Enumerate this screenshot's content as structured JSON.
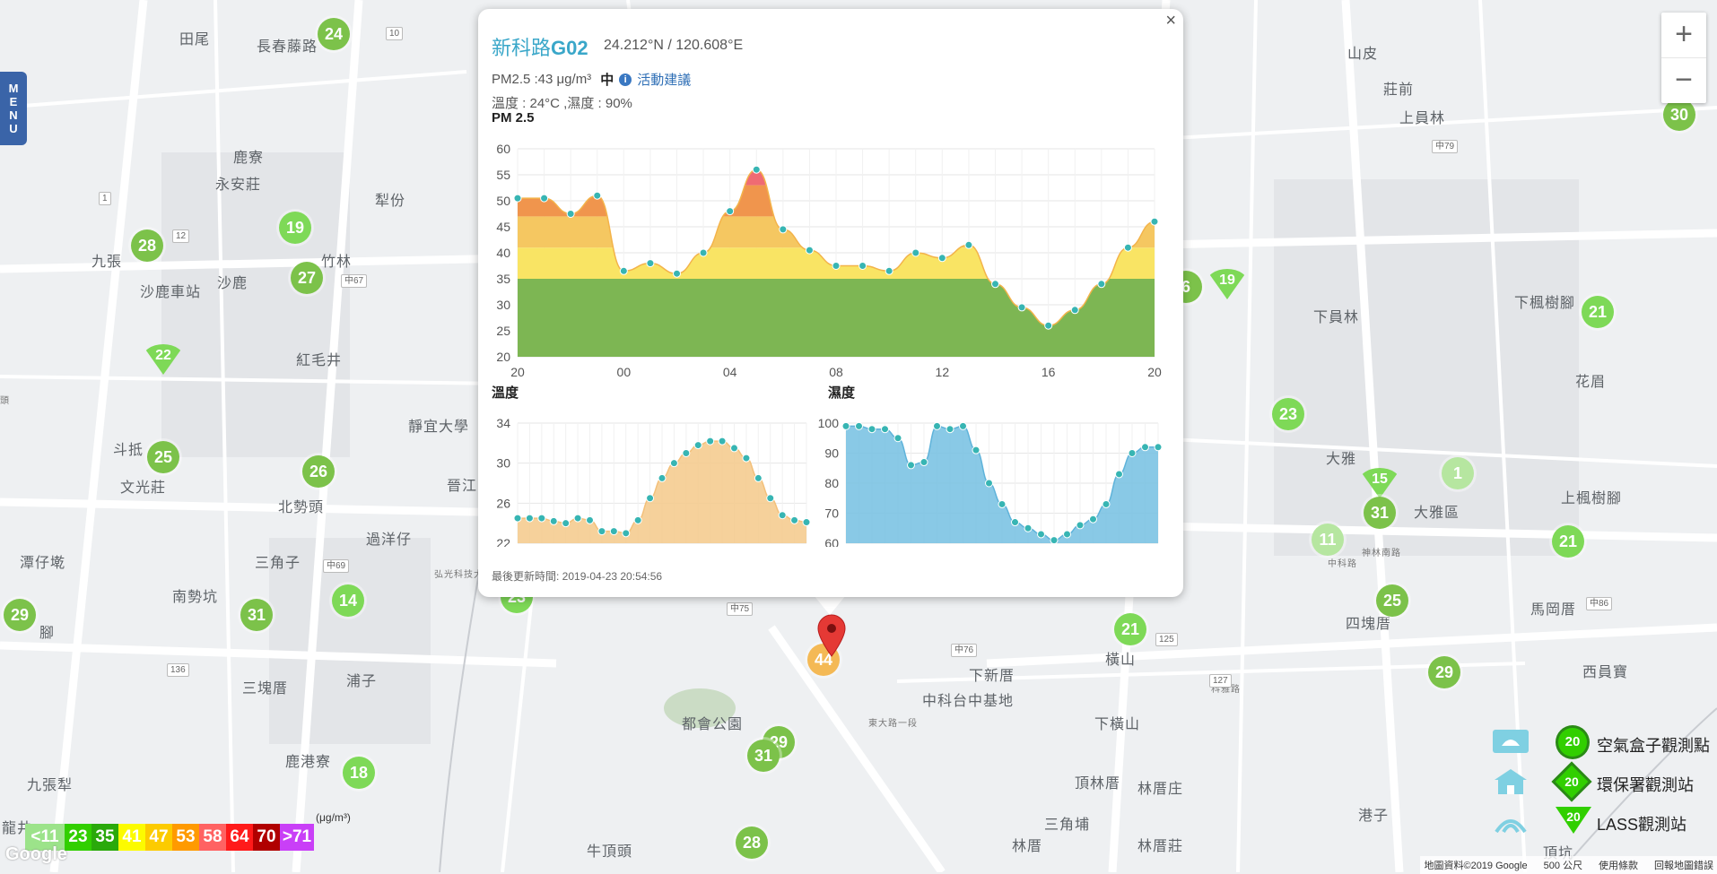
{
  "menu": {
    "letters": [
      "M",
      "E",
      "N",
      "U"
    ]
  },
  "zoom": {
    "in_label": "+",
    "out_label": "−"
  },
  "places": [
    {
      "t": "田尾"
    },
    {
      "t": "長春藤路"
    },
    {
      "t": "鹿寮"
    },
    {
      "t": "永安莊"
    },
    {
      "t": "犁份"
    },
    {
      "t": "九張"
    },
    {
      "t": "沙鹿"
    },
    {
      "t": "竹林"
    },
    {
      "t": "沙鹿車站"
    },
    {
      "t": "紅毛井"
    },
    {
      "t": "靜宜大學"
    },
    {
      "t": "斗抵"
    },
    {
      "t": "文光莊"
    },
    {
      "t": "北勢頭"
    },
    {
      "t": "過洋仔"
    },
    {
      "t": "晉江"
    },
    {
      "t": "三角子"
    },
    {
      "t": "潭仔墘"
    },
    {
      "t": "南勢坑"
    },
    {
      "t": "腳"
    },
    {
      "t": "三塊厝"
    },
    {
      "t": "浦子"
    },
    {
      "t": "九張犁"
    },
    {
      "t": "鹿港寮"
    },
    {
      "t": "牛頂頭"
    },
    {
      "t": "都會公園"
    },
    {
      "t": "下新厝"
    },
    {
      "t": "中科台中基地"
    },
    {
      "t": "橫山"
    },
    {
      "t": "下橫山"
    },
    {
      "t": "頂林厝"
    },
    {
      "t": "三角埔"
    },
    {
      "t": "林厝庄"
    },
    {
      "t": "林厝"
    },
    {
      "t": "林厝莊"
    },
    {
      "t": "港子"
    },
    {
      "t": "山皮"
    },
    {
      "t": "莊前"
    },
    {
      "t": "上員林"
    },
    {
      "t": "下員林"
    },
    {
      "t": "下楓樹腳"
    },
    {
      "t": "花眉"
    },
    {
      "t": "大雅"
    },
    {
      "t": "大雅區"
    },
    {
      "t": "上楓樹腳"
    },
    {
      "t": "四塊厝"
    },
    {
      "t": "馬岡厝"
    },
    {
      "t": "西員寶"
    },
    {
      "t": "頂坑"
    },
    {
      "t": "龍井"
    },
    {
      "t": "中科路"
    },
    {
      "t": "科雅路"
    },
    {
      "t": "東大路一段"
    },
    {
      "t": "神林南路"
    },
    {
      "t": "弘光科技大學"
    },
    {
      "t": "頭"
    }
  ],
  "roads": [
    "中79",
    "中67",
    "中69",
    "中75",
    "中76",
    "中86",
    "125",
    "127",
    "136",
    "12",
    "10",
    "1"
  ],
  "markers": [
    {
      "v": "24",
      "c": "#7cc24a"
    },
    {
      "v": "30",
      "c": "#7cc24a"
    },
    {
      "v": "28",
      "c": "#7cc24a"
    },
    {
      "v": "19",
      "c": "#7ed957"
    },
    {
      "v": "27",
      "c": "#7cc24a"
    },
    {
      "v": "22",
      "c": "#7ed957",
      "tri": true
    },
    {
      "v": "25",
      "c": "#7cc24a"
    },
    {
      "v": "26",
      "c": "#7cc24a"
    },
    {
      "v": "29",
      "c": "#7cc24a"
    },
    {
      "v": "31",
      "c": "#7cc24a"
    },
    {
      "v": "14",
      "c": "#7ed957"
    },
    {
      "v": "18",
      "c": "#7ed957"
    },
    {
      "v": "23",
      "c": "#7ed957"
    },
    {
      "v": "29",
      "c": "#7cc24a"
    },
    {
      "v": "31",
      "c": "#7cc24a"
    },
    {
      "v": "28",
      "c": "#7cc24a"
    },
    {
      "v": "21",
      "c": "#7ed957"
    },
    {
      "v": "25",
      "c": "#7cc24a"
    },
    {
      "v": "29",
      "c": "#7cc24a"
    },
    {
      "v": "21",
      "c": "#7ed957"
    },
    {
      "v": "21",
      "c": "#7ed957"
    },
    {
      "v": "23",
      "c": "#7ed957"
    },
    {
      "v": "15",
      "c": "#7ed957",
      "tri": true
    },
    {
      "v": "31",
      "c": "#7cc24a"
    },
    {
      "v": "1",
      "c": "#b6e6a0"
    },
    {
      "v": "11",
      "c": "#b6e6a0"
    },
    {
      "v": "19",
      "c": "#7ed957",
      "tri": true
    },
    {
      "v": "6",
      "c": "#7cc24a"
    },
    {
      "v": "44",
      "c": "#f4b955"
    }
  ],
  "popup": {
    "close": "×",
    "site_name": "新科路",
    "site_code": "G02",
    "coords": "24.212°N / 120.608°E",
    "pm_reading": "PM2.5 :43 μg/m³",
    "pm_level": "中",
    "advice_link": "活動建議",
    "env": "溫度 : 24°C ,濕度 : 90%",
    "pm_chart_title": "PM 2.5",
    "temp_title": "溫度",
    "hum_title": "濕度",
    "updated": "最後更新時間: 2019-04-23 20:54:56"
  },
  "chart_data": [
    {
      "type": "area",
      "title": "PM 2.5",
      "ylim": [
        20,
        60
      ],
      "yticks": [
        20,
        25,
        30,
        35,
        40,
        45,
        50,
        55,
        60
      ],
      "xtick_labels": [
        "20",
        "00",
        "04",
        "08",
        "12",
        "16",
        "20"
      ],
      "x": [
        0,
        1,
        2,
        3,
        4,
        5,
        6,
        7,
        8,
        9,
        10,
        11,
        12,
        13,
        14,
        15,
        16,
        17,
        18,
        19,
        20,
        21,
        22,
        23,
        24
      ],
      "values": [
        50.5,
        50.5,
        47.5,
        51,
        36.5,
        38,
        36,
        40,
        48,
        56,
        44.5,
        40.5,
        37.5,
        37.5,
        36.5,
        40,
        39,
        41.5,
        34,
        29.5,
        26,
        29,
        34,
        41,
        46
      ],
      "bands": [
        {
          "max": 35,
          "color": "#7db653"
        },
        {
          "max": 41,
          "color": "#f9e464"
        },
        {
          "max": 47,
          "color": "#f5c761"
        },
        {
          "max": 53,
          "color": "#f0954d"
        },
        {
          "max": 60,
          "color": "#ef6b73"
        }
      ],
      "grid": true
    },
    {
      "type": "area",
      "title": "溫度",
      "ylim": [
        22,
        34
      ],
      "yticks": [
        22,
        26,
        30,
        34
      ],
      "values": [
        24.5,
        24.5,
        24.5,
        24.2,
        24,
        24.5,
        24.3,
        23.2,
        23.2,
        23,
        24.3,
        26.5,
        28.5,
        30,
        31,
        31.8,
        32.2,
        32.2,
        31.5,
        30.5,
        28.5,
        26.5,
        24.8,
        24.3,
        24.1
      ],
      "color": "#f5c98a",
      "grid": true
    },
    {
      "type": "area",
      "title": "濕度",
      "ylim": [
        60,
        100
      ],
      "yticks": [
        60,
        70,
        80,
        90,
        100
      ],
      "values": [
        99,
        99,
        98,
        98,
        95,
        86,
        87,
        99,
        98,
        99,
        91,
        80,
        73,
        67,
        65,
        63,
        61,
        63,
        66,
        68,
        73,
        83,
        90,
        92,
        92
      ],
      "color": "#74c0e2",
      "grid": true
    }
  ],
  "legend": [
    {
      "label": "空氣盒子觀測點",
      "value": "20",
      "icon": "airbox-icon",
      "shape": "circle"
    },
    {
      "label": "環保署觀測站",
      "value": "20",
      "icon": "epa-station-icon",
      "shape": "diamond"
    },
    {
      "label": "LASS觀測站",
      "value": "20",
      "icon": "lass-station-icon",
      "shape": "triangle"
    }
  ],
  "scale": {
    "unit": "(μg/m³)",
    "items": [
      {
        "label": "<11",
        "color": "#9ce38a"
      },
      {
        "label": "23",
        "color": "#31cf00"
      },
      {
        "label": "35",
        "color": "#2aa90b"
      },
      {
        "label": "41",
        "color": "#fcfb00"
      },
      {
        "label": "47",
        "color": "#fccb00"
      },
      {
        "label": "53",
        "color": "#ff9a00"
      },
      {
        "label": "58",
        "color": "#ff6262"
      },
      {
        "label": "64",
        "color": "#ff1a1a"
      },
      {
        "label": "70",
        "color": "#b00000"
      },
      {
        "label": ">71",
        "color": "#c93ff7"
      }
    ]
  },
  "google_logo": "Google",
  "attribution": {
    "data": "地圖資料©2019 Google",
    "scale": "500 公尺",
    "terms": "使用條款",
    "report": "回報地圖錯誤"
  }
}
